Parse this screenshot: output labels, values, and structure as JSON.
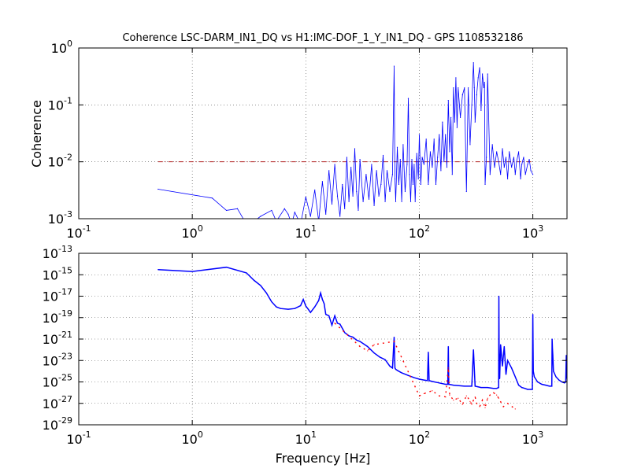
{
  "chart_data": [
    {
      "type": "line",
      "title": "Coherence LSC-DARM_IN1_DQ vs H1:IMC-DOF_1_Y_IN1_DQ - GPS 1108532186",
      "xlabel": "",
      "ylabel": "Coherence",
      "xscale": "log",
      "yscale": "log",
      "xlim": [
        0.1,
        2000
      ],
      "ylim": [
        0.001,
        1
      ],
      "grid": true,
      "x_ticks": [
        {
          "base": "10",
          "exp": "-1"
        },
        {
          "base": "10",
          "exp": "0"
        },
        {
          "base": "10",
          "exp": "1"
        },
        {
          "base": "10",
          "exp": "2"
        },
        {
          "base": "10",
          "exp": "3"
        }
      ],
      "y_ticks": [
        {
          "base": "10",
          "exp": "-3"
        },
        {
          "base": "10",
          "exp": "-2"
        },
        {
          "base": "10",
          "exp": "-1"
        },
        {
          "base": "10",
          "exp": "0"
        }
      ],
      "colors": {
        "coherence": "#0000ff",
        "threshold": "#b22222"
      },
      "threshold": {
        "y": 0.01,
        "x": [
          0.5,
          1000
        ],
        "style": "dash-dot"
      },
      "series": [
        {
          "color": "#0000ff",
          "x": [
            0.5,
            1.5,
            2.0,
            2.5,
            3.0,
            3.5,
            4.0,
            5.0,
            5.5,
            6.5,
            7.0,
            7.5,
            8.0,
            9.0,
            10,
            11,
            12,
            13,
            14,
            15,
            16,
            17,
            18,
            19,
            20,
            21,
            22,
            23,
            24,
            25,
            26,
            27,
            28,
            29,
            30,
            32,
            34,
            36,
            38,
            40,
            42,
            44,
            46,
            48,
            50,
            52,
            55,
            58,
            60,
            61,
            62,
            64,
            66,
            68,
            70,
            72,
            75,
            78,
            80,
            82,
            84,
            86,
            88,
            90,
            92,
            95,
            98,
            100,
            103,
            106,
            110,
            115,
            120,
            125,
            130,
            135,
            140,
            145,
            150,
            155,
            160,
            165,
            170,
            175,
            180,
            185,
            190,
            195,
            200,
            205,
            210,
            215,
            220,
            230,
            240,
            250,
            260,
            270,
            280,
            290,
            300,
            305,
            310,
            320,
            330,
            340,
            350,
            360,
            370,
            375,
            380,
            390,
            400,
            420,
            440,
            460,
            480,
            500,
            520,
            540,
            560,
            580,
            600,
            620,
            650,
            680,
            700,
            720,
            750,
            780,
            800,
            830,
            860,
            900,
            930,
            960,
            1000
          ],
          "y": [
            0.0033,
            0.0023,
            0.0014,
            0.0015,
            0.0008,
            0.0009,
            0.0011,
            0.0014,
            0.0009,
            0.0015,
            0.0012,
            0.0008,
            0.0013,
            0.0008,
            0.0024,
            0.0011,
            0.0032,
            0.0009,
            0.0045,
            0.0012,
            0.007,
            0.0018,
            0.009,
            0.0025,
            0.0011,
            0.004,
            0.0015,
            0.012,
            0.002,
            0.008,
            0.0025,
            0.017,
            0.003,
            0.0014,
            0.011,
            0.002,
            0.006,
            0.0022,
            0.009,
            0.0017,
            0.007,
            0.0025,
            0.004,
            0.013,
            0.002,
            0.007,
            0.003,
            0.006,
            0.48,
            0.005,
            0.002,
            0.018,
            0.004,
            0.011,
            0.002,
            0.02,
            0.003,
            0.009,
            0.13,
            0.006,
            0.002,
            0.011,
            0.004,
            0.009,
            0.002,
            0.014,
            0.005,
            0.03,
            0.004,
            0.012,
            0.009,
            0.025,
            0.004,
            0.015,
            0.008,
            0.025,
            0.004,
            0.012,
            0.03,
            0.007,
            0.05,
            0.01,
            0.03,
            0.008,
            0.12,
            0.015,
            0.06,
            0.006,
            0.2,
            0.05,
            0.3,
            0.04,
            0.2,
            0.06,
            0.15,
            0.2,
            0.003,
            0.2,
            0.02,
            0.1,
            0.55,
            0.2,
            0.05,
            0.15,
            0.3,
            0.45,
            0.08,
            0.35,
            0.2,
            0.25,
            0.004,
            0.012,
            0.35,
            0.006,
            0.02,
            0.008,
            0.015,
            0.01,
            0.006,
            0.017,
            0.008,
            0.012,
            0.005,
            0.015,
            0.008,
            0.012,
            0.006,
            0.01,
            0.015,
            0.005,
            0.009,
            0.012,
            0.006,
            0.009,
            0.011,
            0.007,
            0.006
          ]
        }
      ]
    },
    {
      "type": "line",
      "title": "",
      "xlabel": "Frequency [Hz]",
      "ylabel": "",
      "xscale": "log",
      "yscale": "log",
      "xlim": [
        0.1,
        2000
      ],
      "ylim": [
        1e-29,
        1e-13
      ],
      "grid": true,
      "x_ticks": [
        {
          "base": "10",
          "exp": "-1"
        },
        {
          "base": "10",
          "exp": "0"
        },
        {
          "base": "10",
          "exp": "1"
        },
        {
          "base": "10",
          "exp": "2"
        },
        {
          "base": "10",
          "exp": "3"
        }
      ],
      "y_ticks": [
        {
          "base": "10",
          "exp": "-29"
        },
        {
          "base": "10",
          "exp": "-27"
        },
        {
          "base": "10",
          "exp": "-25"
        },
        {
          "base": "10",
          "exp": "-23"
        },
        {
          "base": "10",
          "exp": "-21"
        },
        {
          "base": "10",
          "exp": "-19"
        },
        {
          "base": "10",
          "exp": "-17"
        },
        {
          "base": "10",
          "exp": "-15"
        },
        {
          "base": "10",
          "exp": "-13"
        }
      ],
      "colors": {
        "spectrum": "#0000ff",
        "projection": "#ff0000"
      },
      "series": [
        {
          "color": "#0000ff",
          "x": [
            0.5,
            1.0,
            2.0,
            3.0,
            3.5,
            4.0,
            4.5,
            5.0,
            5.5,
            6.0,
            7.0,
            8.0,
            9.0,
            9.5,
            10,
            10.5,
            11,
            12,
            13,
            13.5,
            14,
            14.5,
            15,
            16,
            17,
            18,
            19,
            20,
            22,
            24,
            26,
            28,
            30,
            35,
            40,
            45,
            50,
            55,
            58,
            60,
            61,
            62,
            64,
            70,
            80,
            90,
            100,
            110,
            118,
            120,
            122,
            130,
            150,
            170,
            178,
            180,
            182,
            200,
            250,
            290,
            300,
            310,
            350,
            400,
            450,
            480,
            500,
            502,
            505,
            510,
            520,
            540,
            560,
            580,
            600,
            650,
            700,
            750,
            800,
            850,
            900,
            950,
            990,
            1000,
            1005,
            1010,
            1030,
            1100,
            1200,
            1300,
            1400,
            1470,
            1480,
            1490,
            1500,
            1520,
            1600,
            1700,
            1800,
            1900,
            1950,
            1970,
            2000
          ],
          "y": [
            3e-15,
            2e-15,
            5e-15,
            1.5e-15,
            3e-16,
            1e-16,
            2e-17,
            3e-18,
            1e-18,
            7e-19,
            6e-19,
            7e-19,
            1.3e-18,
            5e-18,
            1.2e-18,
            6e-19,
            3e-19,
            1e-18,
            4e-18,
            2e-17,
            5e-18,
            2e-18,
            2e-19,
            1.5e-19,
            2e-20,
            1.5e-19,
            3e-20,
            2.5e-20,
            4e-21,
            2e-21,
            1.5e-21,
            8e-22,
            6e-22,
            2e-22,
            5e-23,
            2e-23,
            1.2e-23,
            3e-24,
            2e-24,
            1.5e-21,
            2e-24,
            1.5e-24,
            1.2e-24,
            7e-25,
            4e-25,
            2.5e-25,
            1.8e-25,
            1.5e-25,
            1.3e-25,
            6e-23,
            1.3e-25,
            1.1e-25,
            8e-26,
            6e-26,
            6e-26,
            2e-22,
            6e-26,
            5e-26,
            4e-26,
            4e-26,
            1e-22,
            4e-26,
            3e-26,
            3e-26,
            2.5e-26,
            2.5e-26,
            3e-26,
            1e-17,
            5e-23,
            2e-25,
            3e-22,
            3e-24,
            2e-22,
            5e-25,
            1e-23,
            2e-24,
            3e-25,
            5e-26,
            3e-26,
            2.5e-26,
            2e-26,
            2e-26,
            2e-26,
            2e-19,
            3e-22,
            1e-24,
            3e-25,
            1e-25,
            6e-26,
            5e-26,
            4e-26,
            4e-26,
            1e-21,
            1e-22,
            3e-23,
            1e-24,
            3e-25,
            1.5e-25,
            1e-25,
            8e-26,
            1e-25,
            3e-23,
            2e-25
          ]
        },
        {
          "color": "#ff0000",
          "x": [
            18,
            30,
            35,
            40,
            60,
            100,
            110,
            130,
            150,
            170,
            180,
            185,
            200,
            220,
            240,
            260,
            270,
            280,
            290,
            300,
            310,
            320,
            340,
            360,
            380,
            400,
            420,
            450,
            480,
            500,
            550,
            600,
            700
          ],
          "y": [
            3e-20,
            2e-22,
            8e-23,
            3e-22,
            6e-22,
            5e-27,
            8e-27,
            1.5e-26,
            5e-27,
            4e-27,
            2e-24,
            6e-27,
            2e-27,
            3e-27,
            8e-28,
            5e-27,
            3e-27,
            1.5e-27,
            8e-28,
            2e-27,
            4e-27,
            1e-27,
            5e-28,
            2e-27,
            4e-28,
            3e-27,
            6e-27,
            1e-26,
            6e-27,
            3e-27,
            5e-28,
            1e-27,
            3e-28
          ]
        }
      ]
    }
  ]
}
